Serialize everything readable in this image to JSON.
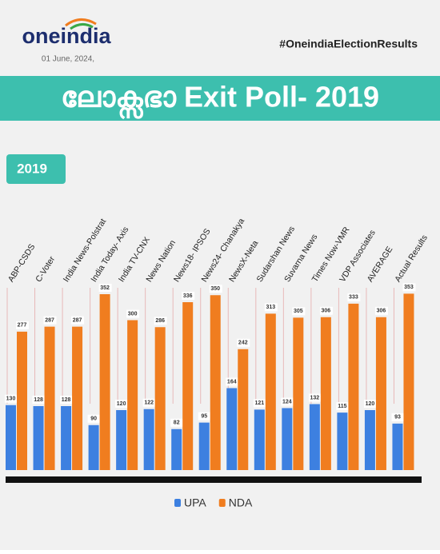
{
  "header": {
    "brand": "oneindia",
    "date": "01 June, 2024,",
    "hashtag": "#OneindiaElectionResults"
  },
  "chart_data": {
    "type": "bar",
    "title": "ലോക്സഭാ Exit Poll- 2019",
    "subtitle": "2019",
    "categories": [
      "ABP-CSDS",
      "C-Voter",
      "India News-Polstrat",
      "India Today- Axis",
      "India TV-CNX",
      "News Nation",
      "News18- IPSOS",
      "News24- Chanakya",
      "NewsX-Neta",
      "Sudarshan News",
      "Suvarna News",
      "Times Now-VMR",
      "VDP Associates",
      "AVERAGE",
      "Actual Results"
    ],
    "series": [
      {
        "name": "UPA",
        "color": "#3d80e0",
        "values": [
          130,
          128,
          128,
          90,
          120,
          122,
          82,
          95,
          164,
          121,
          124,
          132,
          115,
          120,
          93
        ]
      },
      {
        "name": "NDA",
        "color": "#f07d1f",
        "values": [
          277,
          287,
          287,
          352,
          300,
          286,
          336,
          350,
          242,
          313,
          305,
          306,
          333,
          306,
          353
        ]
      }
    ],
    "ylim": [
      0,
      360
    ],
    "legend": "bottom"
  }
}
